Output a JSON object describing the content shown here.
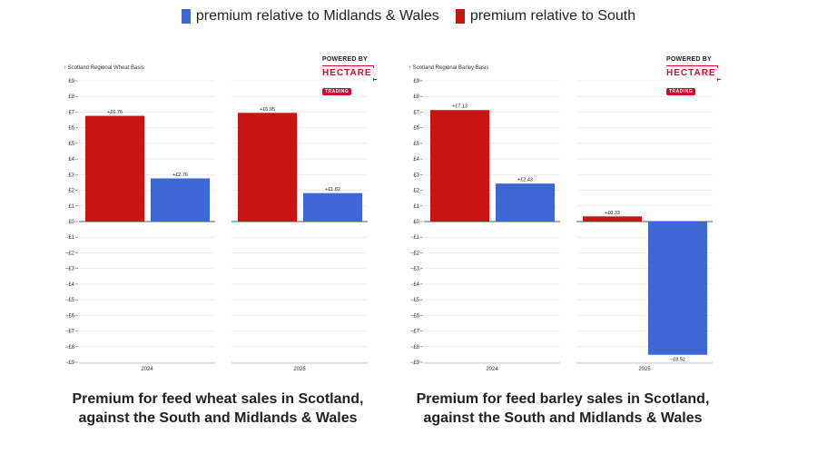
{
  "legend": {
    "items": [
      {
        "label": "premium relative to Midlands & Wales",
        "color": "#3f67d4"
      },
      {
        "label": "premium relative to South",
        "color": "#c91414"
      }
    ]
  },
  "logo": {
    "powered_by": "POWERED BY",
    "brand": "HECTARE",
    "sub": "TRADING"
  },
  "chart_data": [
    {
      "type": "bar",
      "title": "Premium for feed wheat sales in Scotland, against the South and Midlands & Wales",
      "ylabel": "↑ Scotland Regional Wheat Basis",
      "ylim": [
        -9,
        9
      ],
      "yticks": [
        9,
        8,
        7,
        6,
        5,
        4,
        3,
        2,
        1,
        0,
        -1,
        -2,
        -3,
        -4,
        -5,
        -6,
        -7,
        -8,
        -9
      ],
      "ytick_labels": [
        "£9",
        "£8",
        "£7",
        "£6",
        "£5",
        "£4",
        "£3",
        "£2",
        "£1",
        "£0",
        "−£1",
        "−£2",
        "−£3",
        "−£4",
        "−£5",
        "−£6",
        "−£7",
        "−£8",
        "−£9"
      ],
      "categories": [
        "2024",
        "2025"
      ],
      "series": [
        {
          "name": "premium relative to South",
          "color": "#c91414",
          "values": [
            6.76,
            6.95
          ],
          "labels": [
            "+£6.76",
            "+£6.95"
          ]
        },
        {
          "name": "premium relative to Midlands & Wales",
          "color": "#3f67d4",
          "values": [
            2.76,
            1.82
          ],
          "labels": [
            "+£2.76",
            "+£1.82"
          ]
        }
      ]
    },
    {
      "type": "bar",
      "title": "Premium for feed barley sales in Scotland, against the South and Midlands & Wales",
      "ylabel": "↑ Scotland Regional Barley Basis",
      "ylim": [
        -9,
        9
      ],
      "yticks": [
        9,
        8,
        7,
        6,
        5,
        4,
        3,
        2,
        1,
        0,
        -1,
        -2,
        -3,
        -4,
        -5,
        -6,
        -7,
        -8,
        -9
      ],
      "ytick_labels": [
        "£9",
        "£8",
        "£7",
        "£6",
        "£5",
        "£4",
        "£3",
        "£2",
        "£1",
        "£0",
        "−£1",
        "−£2",
        "−£3",
        "−£4",
        "−£5",
        "−£6",
        "−£7",
        "−£8",
        "−£9"
      ],
      "categories": [
        "2024",
        "2025"
      ],
      "series": [
        {
          "name": "premium relative to South",
          "color": "#c91414",
          "values": [
            7.13,
            0.33
          ],
          "labels": [
            "+£7.13",
            "+£0.33"
          ]
        },
        {
          "name": "premium relative to Midlands & Wales",
          "color": "#3f67d4",
          "values": [
            2.43,
            -8.52
          ],
          "labels": [
            "+£2.43",
            "−£8.52"
          ]
        }
      ]
    }
  ]
}
